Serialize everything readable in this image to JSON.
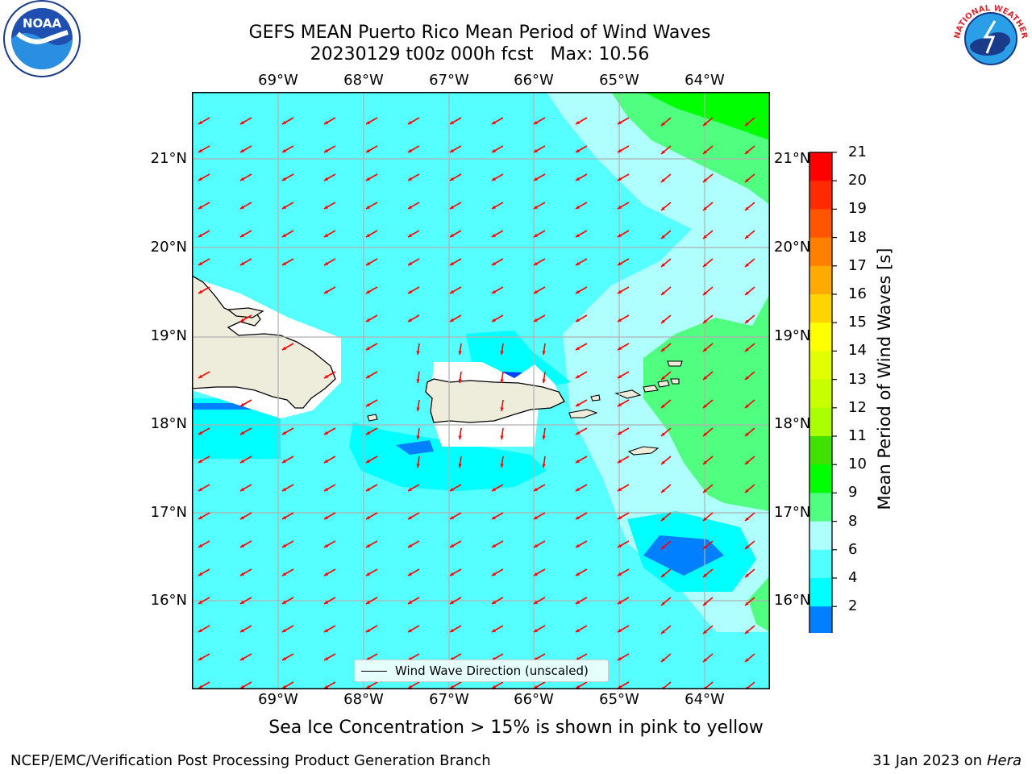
{
  "title": "GEFS MEAN Puerto Rico Mean Period of Wind Waves",
  "subtitle_line": "20230129 t00z 000h fcst   Max: 10.56",
  "lon_labels": [
    "69°W",
    "68°W",
    "67°W",
    "66°W",
    "65°W",
    "64°W"
  ],
  "lat_labels": [
    "21°N",
    "20°N",
    "19°N",
    "18°N",
    "17°N",
    "16°N"
  ],
  "colorbar": {
    "label": "Mean Period of Wind Waves [s]",
    "ticks": [
      "21",
      "20",
      "19",
      "18",
      "17",
      "16",
      "15",
      "14",
      "13",
      "12",
      "11",
      "10",
      "9",
      "8",
      "6",
      "4",
      "2"
    ],
    "colors": [
      "#ff0000",
      "#ff2a00",
      "#ff5500",
      "#ff8000",
      "#ffaa00",
      "#ffd400",
      "#ffff00",
      "#e0ff00",
      "#c8ff00",
      "#aaff00",
      "#40e000",
      "#00ff00",
      "#50ff80",
      "#b0ffff",
      "#50ffff",
      "#00ffff",
      "#0080ff"
    ],
    "extend_color": "#0000ff"
  },
  "legend_label": "Wind Wave Direction (unscaled)",
  "note": "Sea Ice Concentration > 15% is shown in pink to yellow",
  "footer_left": "NCEP/EMC/Verification Post Processing Product Generation Branch",
  "footer_right_prefix": "31 Jan 2023 on ",
  "footer_right_host": "Hera",
  "logos": {
    "left": "noaa-logo",
    "right": "nws-logo",
    "noaa_text": "NOAA",
    "nws_text": "NATIONAL WEATHER SERVICE"
  },
  "colors": {
    "ocean": "#55ffff",
    "land": "#eeeddc",
    "arrow": "#ff0000",
    "grid": "#b0b0b0"
  }
}
